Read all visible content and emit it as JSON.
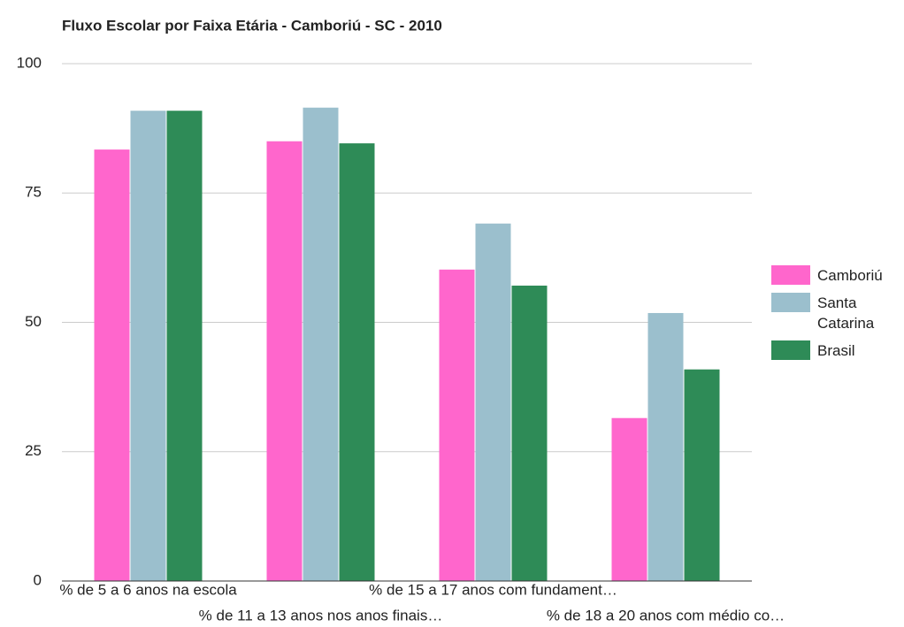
{
  "chart_data": {
    "type": "bar",
    "title": "Fluxo Escolar por Faixa Etária - Camboriú - SC - 2010",
    "categories": [
      "% de 5 a 6 anos na escola",
      "% de 11 a 13 anos nos anos finais…",
      "% de 15 a 17 anos com fundament…",
      "% de 18 a 20 anos com médio co…"
    ],
    "series": [
      {
        "name": "Camboriú",
        "color": "#ff66cc",
        "values": [
          83.4,
          85.0,
          60.2,
          31.5
        ]
      },
      {
        "name": "Santa Catarina",
        "color": "#9bbfcd",
        "values": [
          90.9,
          91.5,
          69.1,
          51.8
        ]
      },
      {
        "name": "Brasil",
        "color": "#2e8b57",
        "values": [
          90.9,
          84.6,
          57.1,
          40.9
        ]
      }
    ],
    "ylim": [
      0,
      100
    ],
    "yticks": [
      0,
      25,
      50,
      75,
      100
    ],
    "grid": true,
    "legend": "right"
  }
}
